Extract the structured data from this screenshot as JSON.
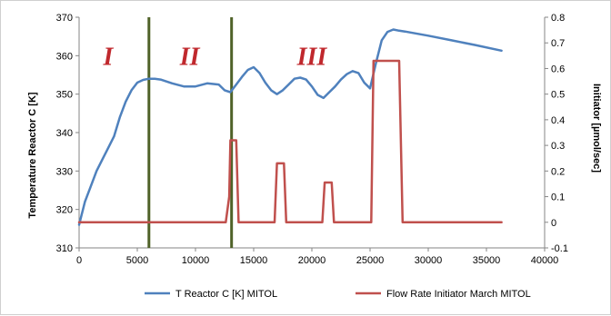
{
  "chart_data": {
    "type": "line",
    "title": "",
    "xlabel": "",
    "ylabel": "Temperature Reactor C [K]",
    "y2label": "Initiator [µmol/sec]",
    "xlim": [
      0,
      40000
    ],
    "ylim": [
      310,
      370
    ],
    "y2lim": [
      -0.1,
      0.8
    ],
    "x_ticks": [
      "0",
      "5000",
      "10000",
      "15000",
      "20000",
      "25000",
      "30000",
      "35000",
      "40000"
    ],
    "y_ticks": [
      "310",
      "320",
      "330",
      "340",
      "350",
      "360",
      "370"
    ],
    "y2_ticks": [
      "-0.1",
      "0",
      "0.1",
      "0.2",
      "0.3",
      "0.4",
      "0.5",
      "0.6",
      "0.7",
      "0.8"
    ],
    "grid": false,
    "legend_position": "bottom",
    "region_labels": [
      {
        "text": "I",
        "x": 2500,
        "y": 0.65
      },
      {
        "text": "II",
        "x": 9500,
        "y": 0.65
      },
      {
        "text": "III",
        "x": 20000,
        "y": 0.65
      }
    ],
    "vertical_lines": [
      {
        "x": 6000,
        "color": "#4f6228"
      },
      {
        "x": 13100,
        "color": "#4f6228"
      }
    ],
    "series": [
      {
        "name": "T Reactor C [K] MITOL",
        "axis": "left",
        "color": "#4f81bd",
        "x": [
          0,
          500,
          1000,
          1500,
          2000,
          2500,
          3000,
          3500,
          4000,
          4500,
          5000,
          5500,
          6000,
          6500,
          7000,
          8000,
          9000,
          10000,
          11000,
          12000,
          12500,
          13000,
          13500,
          14000,
          14500,
          15000,
          15500,
          16000,
          16500,
          17000,
          17500,
          18000,
          18500,
          19000,
          19500,
          20000,
          20500,
          21000,
          21500,
          22000,
          22500,
          23000,
          23500,
          24000,
          24500,
          25000,
          25500,
          26000,
          26500,
          27000,
          27500,
          28000,
          30000,
          32000,
          34000,
          36300
        ],
        "y": [
          316,
          322,
          326,
          330,
          333,
          336,
          339,
          344,
          348,
          351,
          353,
          353.7,
          354,
          354,
          353.8,
          352.8,
          352,
          352,
          352.8,
          352.5,
          351,
          350.5,
          352.5,
          354.5,
          356.3,
          357,
          355.5,
          353,
          351,
          350,
          351,
          352.5,
          354,
          354.3,
          353.8,
          352,
          349.8,
          349,
          350.5,
          352,
          353.8,
          355.2,
          356,
          355.5,
          353,
          351.5,
          358,
          364,
          366.2,
          366.8,
          366.5,
          366.3,
          365.2,
          364,
          362.8,
          361.3
        ]
      },
      {
        "name": "Flow Rate Initiator March MITOL",
        "axis": "right",
        "color": "#c0504d",
        "x": [
          0,
          12600,
          12900,
          13000,
          13500,
          13700,
          16800,
          17000,
          17600,
          17800,
          20900,
          21100,
          21700,
          21900,
          25100,
          25300,
          27500,
          27800,
          36300
        ],
        "y": [
          0,
          0,
          0.1,
          0.32,
          0.32,
          0,
          0,
          0.23,
          0.23,
          0,
          0,
          0.155,
          0.155,
          0,
          0,
          0.63,
          0.63,
          0,
          0
        ]
      }
    ]
  }
}
